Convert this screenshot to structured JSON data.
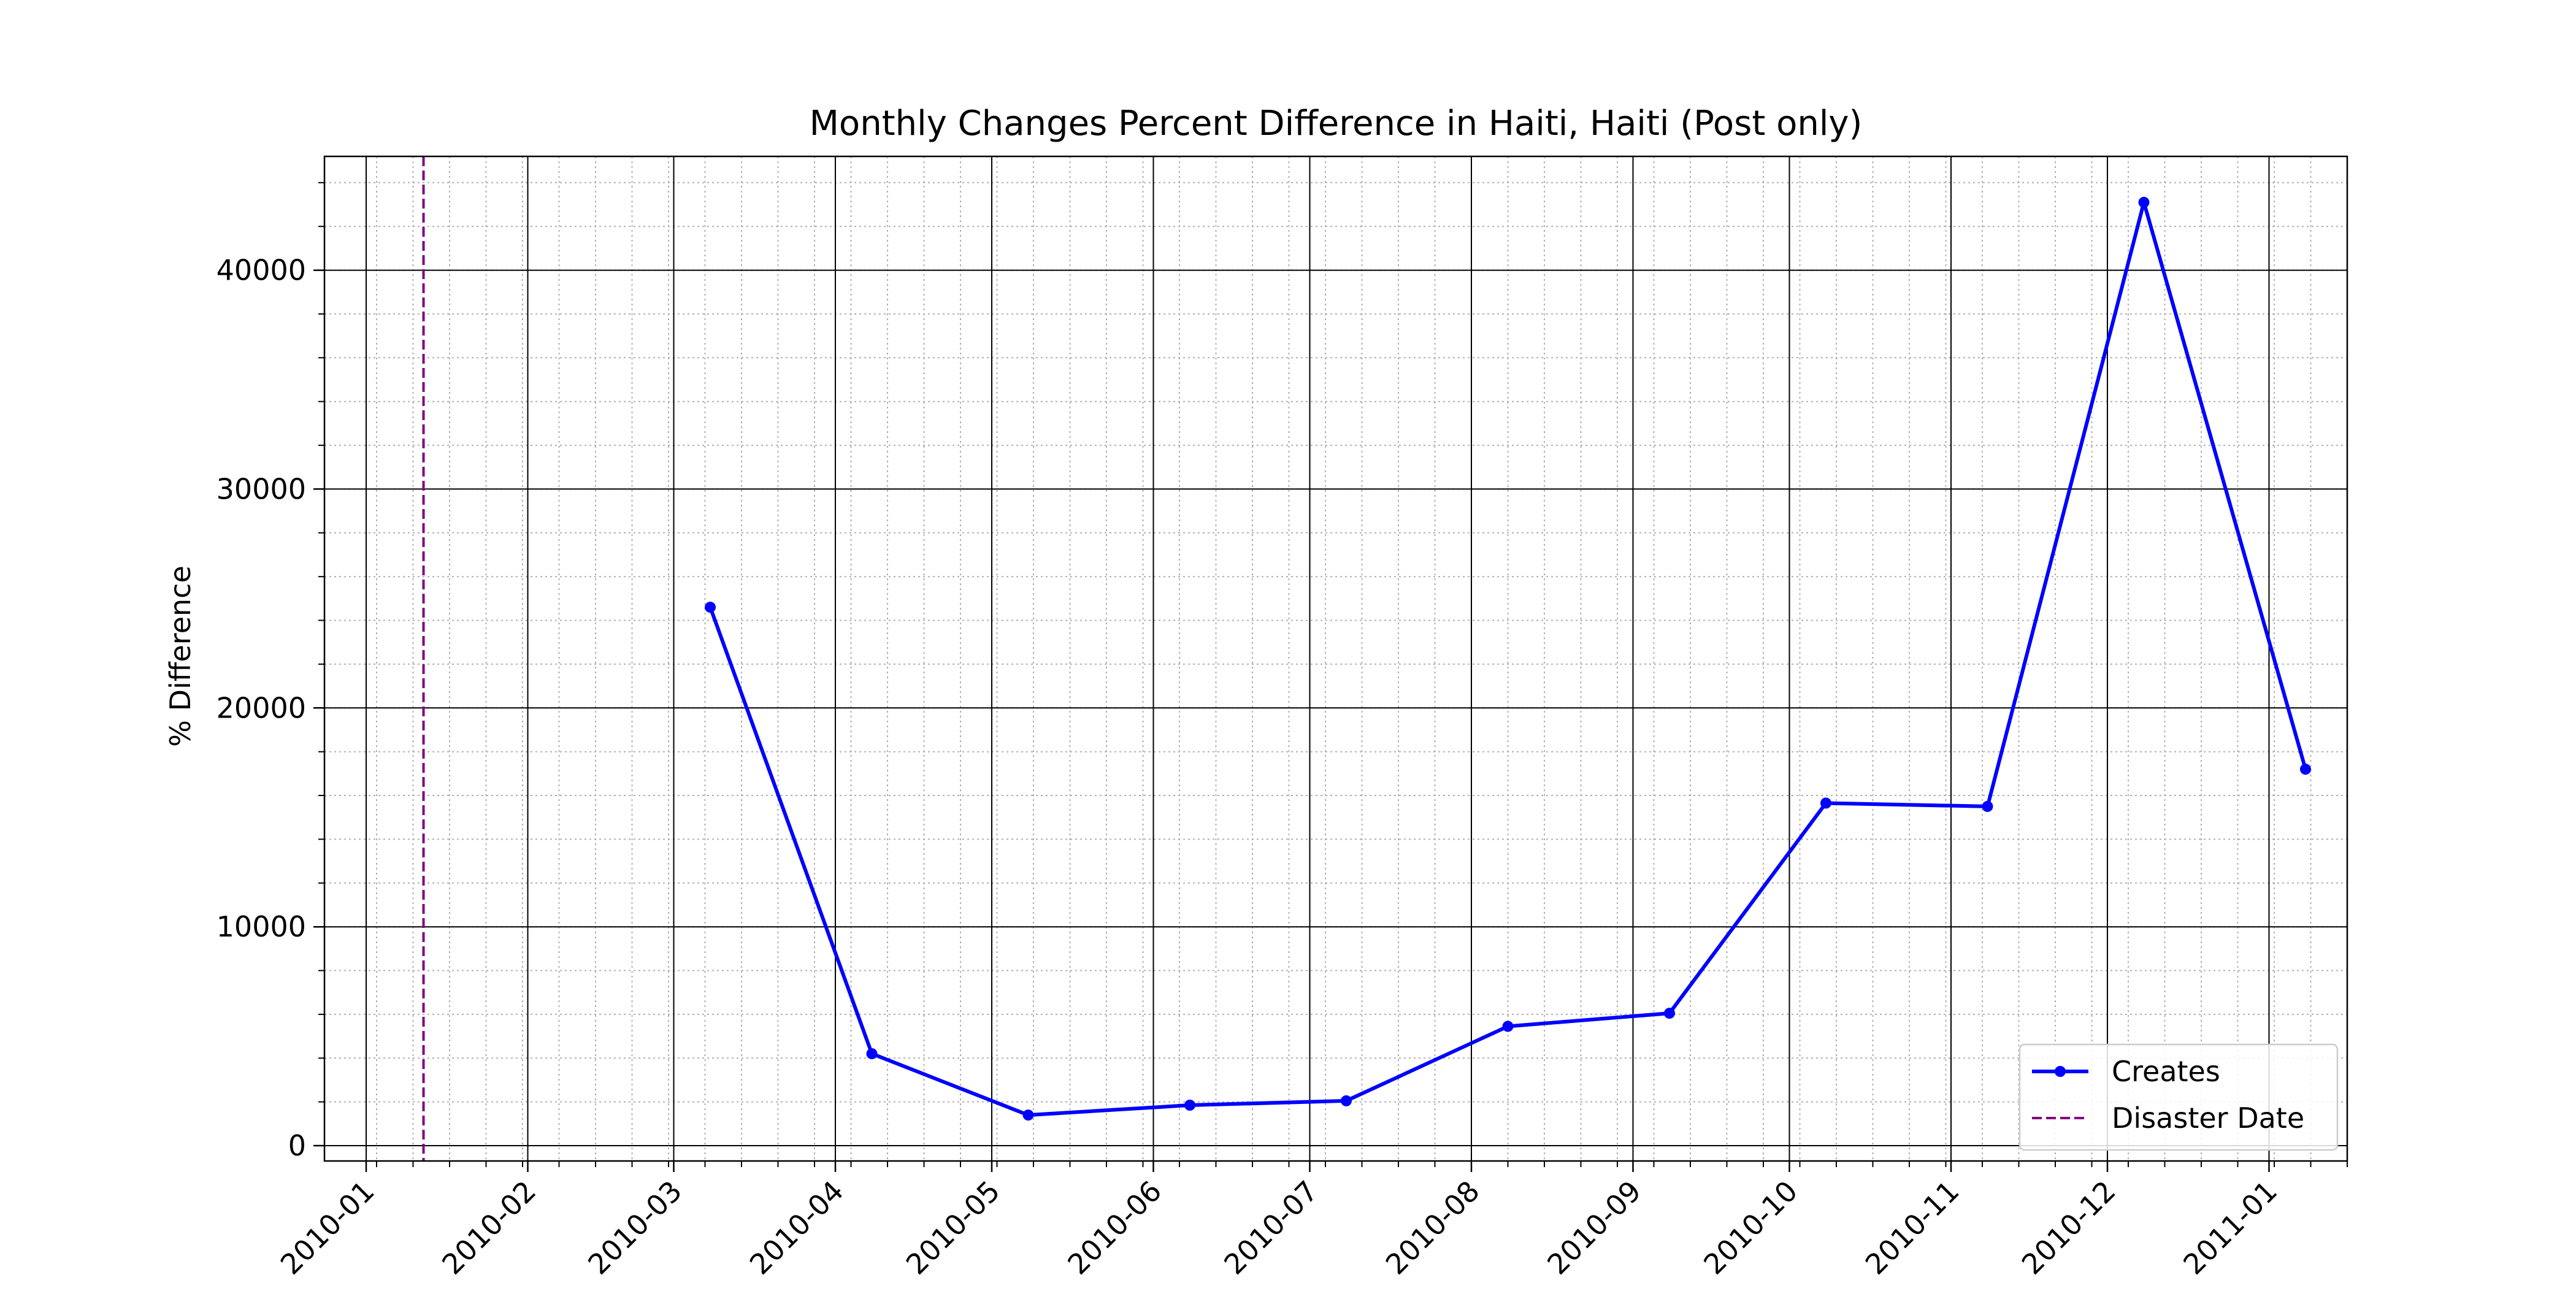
{
  "chart_data": {
    "type": "line",
    "title": "Monthly Changes Percent Difference in Haiti, Haiti (Post only)",
    "xlabel": "",
    "ylabel": "% Difference",
    "x_axis_type": "date",
    "xlim": [
      "2009-12-24",
      "2011-01-16"
    ],
    "ylim": [
      -700,
      45200
    ],
    "x_ticks": [
      "2010-01-01",
      "2010-02-01",
      "2010-03-01",
      "2010-04-01",
      "2010-05-01",
      "2010-06-01",
      "2010-07-01",
      "2010-08-01",
      "2010-09-01",
      "2010-10-01",
      "2010-11-01",
      "2010-12-01",
      "2011-01-01"
    ],
    "x_tick_labels": [
      "2010-01",
      "2010-02",
      "2010-03",
      "2010-04",
      "2010-05",
      "2010-06",
      "2010-07",
      "2010-08",
      "2010-09",
      "2010-10",
      "2010-11",
      "2010-12",
      "2011-01"
    ],
    "y_ticks": [
      0,
      10000,
      20000,
      30000,
      40000
    ],
    "y_tick_labels": [
      "0",
      "10000",
      "20000",
      "30000",
      "40000"
    ],
    "grid": {
      "major": true,
      "minor": true
    },
    "series": [
      {
        "name": "Creates",
        "color": "#0000ff",
        "marker": "circle",
        "x": [
          "2010-03-08",
          "2010-04-08",
          "2010-05-08",
          "2010-06-08",
          "2010-07-08",
          "2010-08-08",
          "2010-09-08",
          "2010-10-08",
          "2010-11-08",
          "2010-12-08",
          "2011-01-08"
        ],
        "y": [
          24600,
          4200,
          1400,
          1850,
          2050,
          5450,
          6050,
          15650,
          15500,
          43100,
          17200
        ]
      }
    ],
    "annotations": [
      {
        "type": "vline",
        "x": "2010-01-12",
        "label": "Disaster Date",
        "color": "#800080",
        "style": "dashed"
      }
    ],
    "legend": {
      "position": "lower-right",
      "entries": [
        {
          "label": "Creates",
          "color": "#0000ff",
          "style": "solid-marker"
        },
        {
          "label": "Disaster Date",
          "color": "#800080",
          "style": "dashed"
        }
      ]
    }
  }
}
